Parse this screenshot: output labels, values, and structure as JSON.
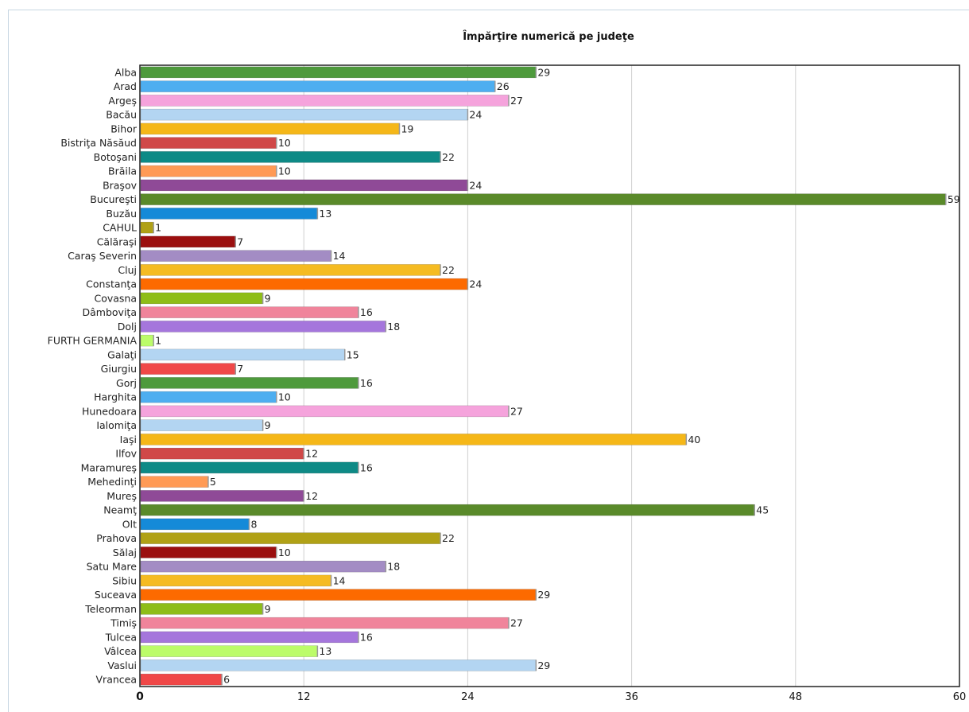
{
  "chart_data": {
    "type": "bar",
    "orientation": "horizontal",
    "title": "Împărţire numerică pe judeţe",
    "xlabel": "",
    "ylabel": "",
    "xlim": [
      0,
      60
    ],
    "ticks": [
      0,
      12,
      24,
      36,
      48,
      60
    ],
    "grid": true,
    "categories": [
      "Alba",
      "Arad",
      "Argeş",
      "Bacău",
      "Bihor",
      "Bistriţa Năsăud",
      "Botoşani",
      "Brăila",
      "Braşov",
      "Bucureşti",
      "Buzău",
      "CAHUL",
      "Călăraşi",
      "Caraş Severin",
      "Cluj",
      "Constanţa",
      "Covasna",
      "Dâmboviţa",
      "Dolj",
      "FURTH GERMANIA",
      "Galaţi",
      "Giurgiu",
      "Gorj",
      "Harghita",
      "Hunedoara",
      "Ialomiţa",
      "Iaşi",
      "Ilfov",
      "Maramureş",
      "Mehedinţi",
      "Mureş",
      "Neamţ",
      "Olt",
      "Prahova",
      "Sălaj",
      "Satu Mare",
      "Sibiu",
      "Suceava",
      "Teleorman",
      "Timiş",
      "Tulcea",
      "Vâlcea",
      "Vaslui",
      "Vrancea"
    ],
    "values": [
      29,
      26,
      27,
      24,
      19,
      10,
      22,
      10,
      24,
      59,
      13,
      1,
      7,
      14,
      22,
      24,
      9,
      16,
      18,
      1,
      15,
      7,
      16,
      10,
      27,
      9,
      40,
      12,
      16,
      5,
      12,
      45,
      8,
      22,
      10,
      18,
      14,
      29,
      9,
      27,
      16,
      13,
      29,
      6
    ],
    "colors": [
      "#4e9a3c",
      "#4eaef0",
      "#f5a3dc",
      "#b3d5f2",
      "#f5b718",
      "#d04848",
      "#0e8a86",
      "#ff9a55",
      "#8f4a97",
      "#5a8a2a",
      "#158ad8",
      "#b0a116",
      "#9b0f0f",
      "#a38cc4",
      "#f5bb22",
      "#fd6a00",
      "#8ebd18",
      "#f0849b",
      "#a576dc",
      "#bcfc6a",
      "#b3d5f2",
      "#f04848",
      "#4e9a3c",
      "#4eaef0",
      "#f5a3dc",
      "#b3d5f2",
      "#f5b718",
      "#d04848",
      "#0e8a86",
      "#ff9a55",
      "#8f4a97",
      "#5a8a2a",
      "#158ad8",
      "#b0a116",
      "#9b0f0f",
      "#a38cc4",
      "#f5bb22",
      "#fd6a00",
      "#8ebd18",
      "#f0849b",
      "#a576dc",
      "#bcfc6a",
      "#b3d5f2",
      "#f04848"
    ]
  }
}
